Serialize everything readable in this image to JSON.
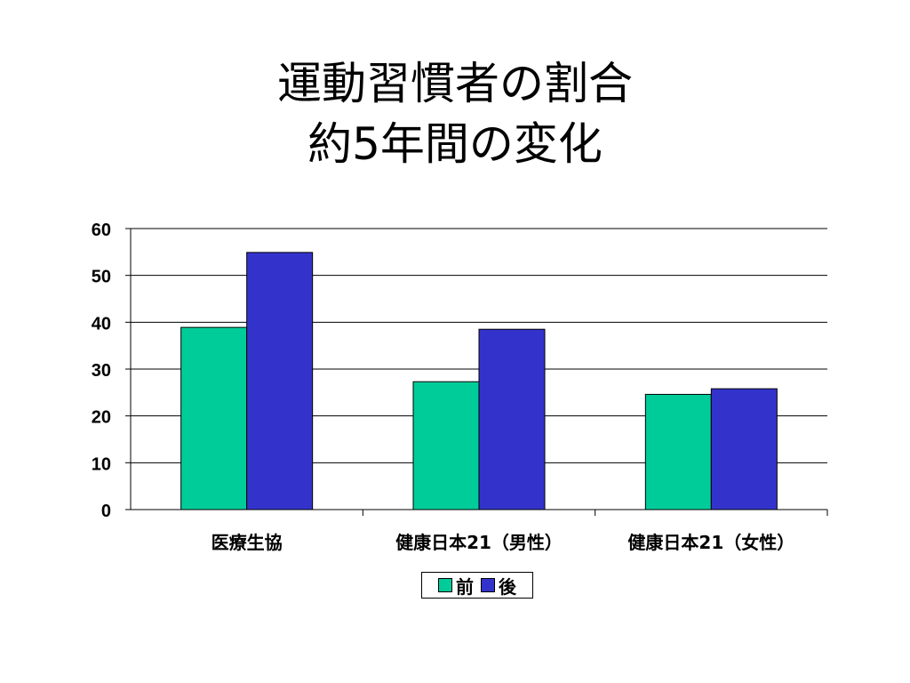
{
  "title": {
    "line1": "運動習慣者の割合",
    "line2": "約5年間の変化"
  },
  "chart_data": {
    "type": "bar",
    "categories": [
      "医療生協",
      "健康日本21（男性）",
      "健康日本21（女性）"
    ],
    "series": [
      {
        "name": "前",
        "values": [
          38.9,
          27.3,
          24.6
        ],
        "color": "#00CC99"
      },
      {
        "name": "後",
        "values": [
          54.9,
          38.5,
          25.8
        ],
        "color": "#3333CC"
      }
    ],
    "ylim": [
      0,
      60
    ],
    "yticks": [
      "0",
      "10",
      "20",
      "30",
      "40",
      "50",
      "60"
    ],
    "grid": true,
    "legend_position": "bottom"
  }
}
